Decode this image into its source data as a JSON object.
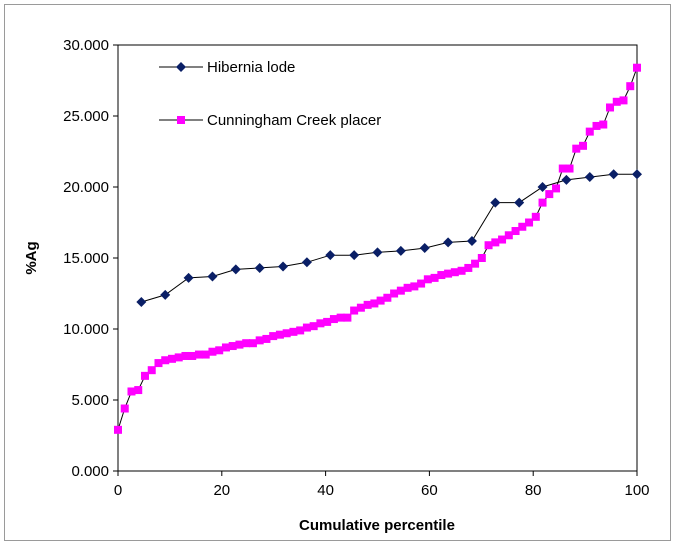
{
  "chart_data": {
    "type": "line",
    "title": "",
    "xlabel": "Cumulative percentile",
    "ylabel": "%Ag",
    "xlim": [
      0,
      100
    ],
    "ylim": [
      0,
      30
    ],
    "x_ticks": [
      "0",
      "20",
      "40",
      "60",
      "80",
      "100"
    ],
    "y_ticks": [
      "0.000",
      "5.000",
      "10.000",
      "15.000",
      "20.000",
      "25.000",
      "30.000"
    ],
    "grid": false,
    "legend_position": "top-left",
    "series": [
      {
        "name": "Hibernia lode",
        "color": "#0a1f66",
        "marker": "diamond",
        "x": [
          4.5,
          9.1,
          13.6,
          18.2,
          22.7,
          27.3,
          31.8,
          36.4,
          40.9,
          45.5,
          50.0,
          54.5,
          59.1,
          63.6,
          68.2,
          72.7,
          77.3,
          81.8,
          86.4,
          90.9,
          95.5,
          100.0
        ],
        "y": [
          11.9,
          12.4,
          13.6,
          13.7,
          14.2,
          14.3,
          14.4,
          14.7,
          15.2,
          15.2,
          15.4,
          15.5,
          15.7,
          16.1,
          16.2,
          18.9,
          18.9,
          20.0,
          20.5,
          20.7,
          20.9,
          20.9
        ]
      },
      {
        "name": "Cunningham Creek placer",
        "color": "#ff00ff",
        "marker": "square",
        "x": [
          0.0,
          1.3,
          2.6,
          3.9,
          5.2,
          6.5,
          7.8,
          9.1,
          10.4,
          11.7,
          13.0,
          14.3,
          15.6,
          16.9,
          18.2,
          19.5,
          20.8,
          22.1,
          23.4,
          24.7,
          26.0,
          27.3,
          28.6,
          29.9,
          31.2,
          32.5,
          33.8,
          35.1,
          36.4,
          37.7,
          39.0,
          40.3,
          41.6,
          42.9,
          44.2,
          45.5,
          46.8,
          48.1,
          49.4,
          50.6,
          51.9,
          53.2,
          54.5,
          55.8,
          57.1,
          58.4,
          59.7,
          61.0,
          62.3,
          63.6,
          64.9,
          66.2,
          67.5,
          68.8,
          70.1,
          71.4,
          72.7,
          74.0,
          75.3,
          76.6,
          77.9,
          79.2,
          80.5,
          81.8,
          83.1,
          84.4,
          85.7,
          87.0,
          88.3,
          89.6,
          90.9,
          92.2,
          93.5,
          94.8,
          96.1,
          97.4,
          98.7,
          100.0
        ],
        "y": [
          2.9,
          4.4,
          5.6,
          5.7,
          6.7,
          7.1,
          7.6,
          7.8,
          7.9,
          8.0,
          8.1,
          8.1,
          8.2,
          8.2,
          8.4,
          8.5,
          8.7,
          8.8,
          8.9,
          9.0,
          9.0,
          9.2,
          9.3,
          9.5,
          9.6,
          9.7,
          9.8,
          9.9,
          10.1,
          10.2,
          10.4,
          10.5,
          10.7,
          10.8,
          10.8,
          11.3,
          11.5,
          11.7,
          11.8,
          12.0,
          12.2,
          12.5,
          12.7,
          12.9,
          13.0,
          13.2,
          13.5,
          13.6,
          13.8,
          13.9,
          14.0,
          14.1,
          14.3,
          14.6,
          15.0,
          15.9,
          16.1,
          16.3,
          16.6,
          16.9,
          17.2,
          17.5,
          17.9,
          18.9,
          19.5,
          19.9,
          21.3,
          21.3,
          22.7,
          22.9,
          23.9,
          24.3,
          24.4,
          25.6,
          26.0,
          26.1,
          27.1,
          28.4
        ]
      }
    ]
  }
}
